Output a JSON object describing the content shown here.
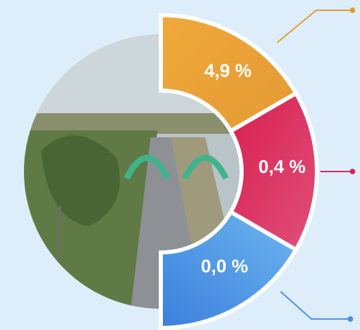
{
  "segments": [
    {
      "label": "4,9 %"
    },
    {
      "label": "0,4 %"
    },
    {
      "label": "0,0 %"
    }
  ]
}
